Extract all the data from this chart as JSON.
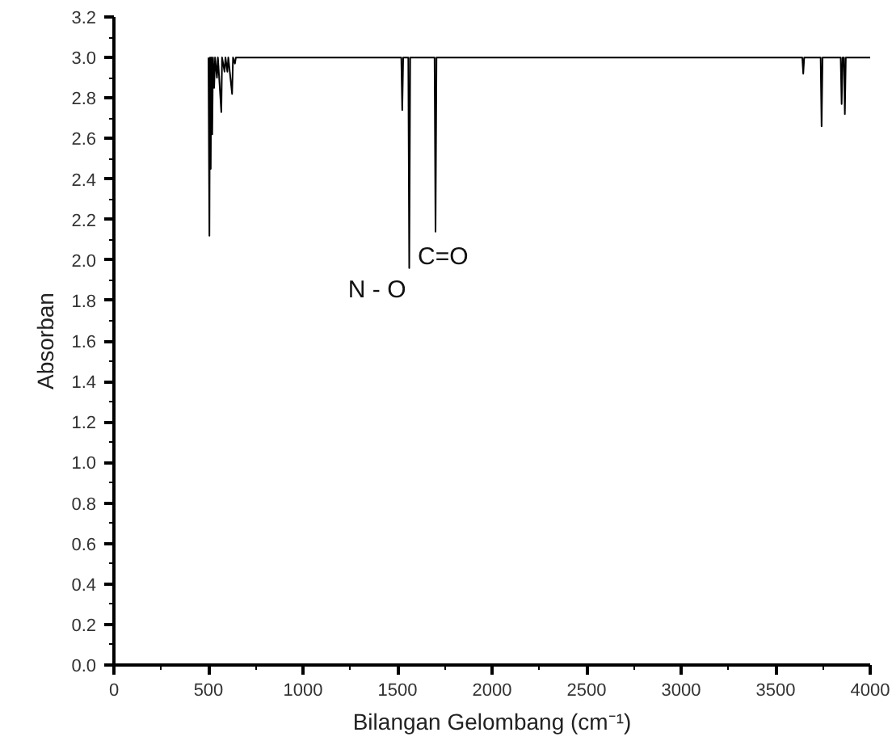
{
  "chart_data": {
    "type": "line",
    "xlabel": "Bilangan Gelombang (cm⁻¹)",
    "ylabel": "Absorban",
    "xlim": [
      0,
      4000
    ],
    "ylim": [
      0,
      3.2
    ],
    "xticks": [
      0,
      500,
      1000,
      1500,
      2000,
      2500,
      3000,
      3500,
      4000
    ],
    "yticks": [
      {
        "value": 0,
        "label": "0.0"
      },
      {
        "value": 0.2,
        "label": "0.2"
      },
      {
        "value": 0.4,
        "label": "0.4"
      },
      {
        "value": 0.6,
        "label": "0.6"
      },
      {
        "value": 0.8,
        "label": "0.8"
      },
      {
        "value": 1.0,
        "label": "1.0"
      },
      {
        "value": 1.2,
        "label": "1.2"
      },
      {
        "value": 1.4,
        "label": "1.4"
      },
      {
        "value": 1.6,
        "label": "1.6"
      },
      {
        "value": 1.8,
        "label": "1.8"
      },
      {
        "value": 2.0,
        "label": "2.0"
      },
      {
        "value": 2.2,
        "label": "2.2"
      },
      {
        "value": 2.4,
        "label": "2.4"
      },
      {
        "value": 2.6,
        "label": "2.6"
      },
      {
        "value": 2.8,
        "label": "2.8"
      },
      {
        "value": 3.0,
        "label": "3.0"
      },
      {
        "value": 3.2,
        "label": "3.2"
      }
    ],
    "grid": false,
    "marker": "none",
    "line_style": "solid",
    "series": [
      {
        "color": "#000000",
        "x": [
          500,
          505,
          508,
          512,
          515,
          520,
          524,
          530,
          535,
          545,
          550,
          568,
          572,
          585,
          590,
          600,
          605,
          625,
          630,
          640,
          645,
          1520,
          1525,
          1530,
          1557,
          1562,
          1567,
          1696,
          1701,
          1706,
          3641,
          3646,
          3651,
          3738,
          3743,
          3748,
          3844,
          3849,
          3854,
          3861,
          3866,
          3871,
          4000
        ],
        "values": [
          3.0,
          2.12,
          3.0,
          2.45,
          3.0,
          2.62,
          3.0,
          2.85,
          3.0,
          2.9,
          3.0,
          2.73,
          3.0,
          2.93,
          3.0,
          2.93,
          3.0,
          2.82,
          3.0,
          2.97,
          3.0,
          3.0,
          2.74,
          3.0,
          3.0,
          1.96,
          3.0,
          3.0,
          2.14,
          3.0,
          3.0,
          2.92,
          3.0,
          3.0,
          2.66,
          3.0,
          3.0,
          2.77,
          3.0,
          3.0,
          2.72,
          3.0,
          3.0
        ]
      }
    ],
    "annotations": [
      {
        "text": "N - O",
        "x": 1562,
        "y": 1.96
      },
      {
        "text": "C=O",
        "x": 1701,
        "y": 2.14
      }
    ]
  }
}
